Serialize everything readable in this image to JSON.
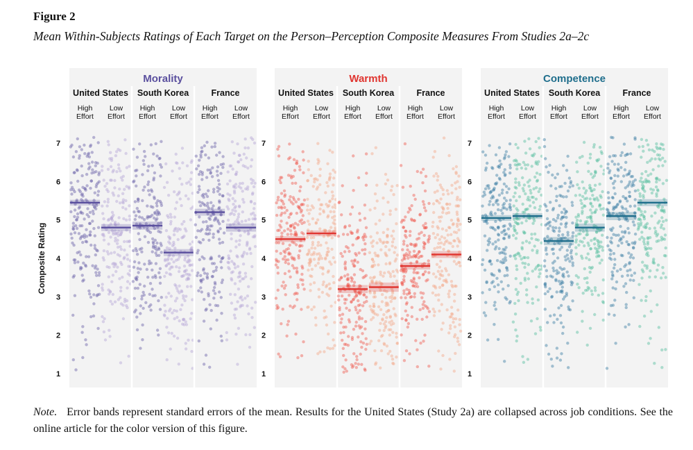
{
  "figure": {
    "label": "Figure 2",
    "title": "Mean Within-Subjects Ratings of Each Target on the Person–Perception Composite Measures From Studies 2a–2c"
  },
  "note": {
    "label": "Note.",
    "text": "Error bands represent standard errors of the mean. Results for the United States (Study 2a) are collapsed across job conditions. See the online article for the color version of this figure."
  },
  "chart_data": {
    "type": "scatter",
    "subtype": "jittered strip plot with mean lines and standard-error bands",
    "ylabel": "Composite Rating",
    "ylim": [
      1,
      7
    ],
    "yticks": [
      1,
      2,
      3,
      4,
      5,
      6,
      7
    ],
    "grid": false,
    "panels": [
      {
        "title": "Morality",
        "color": "#5a4f9e",
        "point_colors": [
          "#6a62a8",
          "#b5a6d6"
        ],
        "countries": [
          {
            "name": "United States",
            "conditions": [
              {
                "label": "High\nEffort",
                "mean": 5.45,
                "se": 0.05
              },
              {
                "label": "Low\nEffort",
                "mean": 4.8,
                "se": 0.06
              }
            ]
          },
          {
            "name": "South Korea",
            "conditions": [
              {
                "label": "High\nEffort",
                "mean": 4.85,
                "se": 0.07
              },
              {
                "label": "Low\nEffort",
                "mean": 4.15,
                "se": 0.06
              }
            ]
          },
          {
            "name": "France",
            "conditions": [
              {
                "label": "High\nEffort",
                "mean": 5.2,
                "se": 0.06
              },
              {
                "label": "Low\nEffort",
                "mean": 4.8,
                "se": 0.07
              }
            ]
          }
        ]
      },
      {
        "title": "Warmth",
        "color": "#e03530",
        "point_colors": [
          "#ef5a50",
          "#f5a88a"
        ],
        "countries": [
          {
            "name": "United States",
            "conditions": [
              {
                "label": "High\nEffort",
                "mean": 4.5,
                "se": 0.05
              },
              {
                "label": "Low\nEffort",
                "mean": 4.65,
                "se": 0.05
              }
            ]
          },
          {
            "name": "South Korea",
            "conditions": [
              {
                "label": "High\nEffort",
                "mean": 3.2,
                "se": 0.07
              },
              {
                "label": "Low\nEffort",
                "mean": 3.25,
                "se": 0.08
              }
            ]
          },
          {
            "name": "France",
            "conditions": [
              {
                "label": "High\nEffort",
                "mean": 3.8,
                "se": 0.06
              },
              {
                "label": "Low\nEffort",
                "mean": 4.1,
                "se": 0.06
              }
            ]
          }
        ]
      },
      {
        "title": "Competence",
        "color": "#1f6e8c",
        "point_colors": [
          "#3c7fa3",
          "#57bfa0"
        ],
        "countries": [
          {
            "name": "United States",
            "conditions": [
              {
                "label": "High\nEffort",
                "mean": 5.05,
                "se": 0.05
              },
              {
                "label": "Low\nEffort",
                "mean": 5.1,
                "se": 0.05
              }
            ]
          },
          {
            "name": "South Korea",
            "conditions": [
              {
                "label": "High\nEffort",
                "mean": 4.45,
                "se": 0.07
              },
              {
                "label": "Low\nEffort",
                "mean": 4.8,
                "se": 0.07
              }
            ]
          },
          {
            "name": "France",
            "conditions": [
              {
                "label": "High\nEffort",
                "mean": 5.1,
                "se": 0.07
              },
              {
                "label": "Low\nEffort",
                "mean": 5.45,
                "se": 0.06
              }
            ]
          }
        ]
      }
    ]
  }
}
